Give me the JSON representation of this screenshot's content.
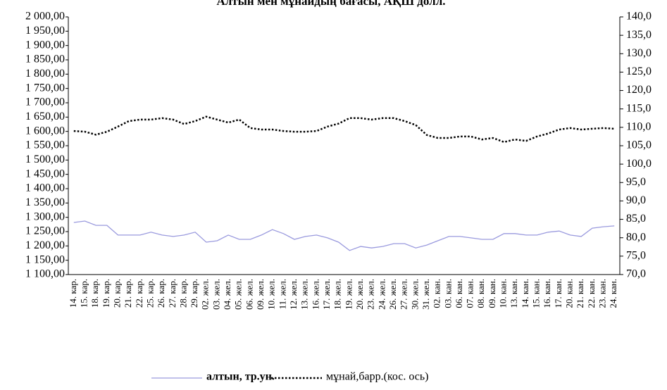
{
  "chart_data": {
    "type": "line",
    "title": "Алтын мен мұнайдың бағасы, АҚШ долл.",
    "categories": [
      "14. кар.",
      "15. кар.",
      "18. кар.",
      "19. кар.",
      "20. кар.",
      "21. кар.",
      "22. кар.",
      "25. кар.",
      "26. кар.",
      "27. кар.",
      "28. кар.",
      "29. кар.",
      "02. жел.",
      "03. жел.",
      "04. жел.",
      "05. жел.",
      "06. жел.",
      "09. жел.",
      "10. жел.",
      "11. жел.",
      "12. жел.",
      "13. жел.",
      "16. жел.",
      "17. жел.",
      "18. жел.",
      "19. жел.",
      "20. жел.",
      "23. жел.",
      "24. жел.",
      "26. жел.",
      "27. жел.",
      "30. жел.",
      "31. жел.",
      "02. кан.",
      "03. кан.",
      "06. кан.",
      "07. кан.",
      "08. кан.",
      "09. кан.",
      "10. кан.",
      "13. кан.",
      "14. кан.",
      "15. кан.",
      "16. кан.",
      "17. кан.",
      "20. кан.",
      "21. кан.",
      "22. кан.",
      "23. кан.",
      "24. кан."
    ],
    "series": [
      {
        "name": "алтын, тр.ун.",
        "color": "#9a9ade",
        "values": [
          1282,
          1287,
          1272,
          1272,
          1238,
          1238,
          1238,
          1248,
          1238,
          1233,
          1238,
          1248,
          1213,
          1218,
          1238,
          1223,
          1223,
          1238,
          1257,
          1243,
          1223,
          1233,
          1238,
          1228,
          1213,
          1184,
          1198,
          1193,
          1198,
          1208,
          1208,
          1193,
          1203,
          1218,
          1233,
          1233,
          1228,
          1223,
          1223,
          1243,
          1243,
          1238,
          1238,
          1248,
          1252,
          1238,
          1233,
          1262,
          1267,
          1270
        ]
      },
      {
        "name": "мұнай,барр.(кос. ось)",
        "color": "#000000",
        "axis": "y2",
        "values": [
          109,
          108.8,
          108,
          108.8,
          110.2,
          111.7,
          112.1,
          112.1,
          112.5,
          112.1,
          110.9,
          111.7,
          112.9,
          112.1,
          111.3,
          112.1,
          109.8,
          109.4,
          109.4,
          109,
          108.8,
          108.8,
          109,
          110.2,
          111,
          112.5,
          112.5,
          112.1,
          112.5,
          112.5,
          111.7,
          110.6,
          107.9,
          107.1,
          107.1,
          107.5,
          107.5,
          106.7,
          107.1,
          106,
          106.7,
          106.3,
          107.5,
          108.3,
          109.4,
          109.8,
          109.4,
          109.6,
          109.8,
          109.6
        ]
      }
    ],
    "ylim": [
      1100,
      2000
    ],
    "yticks": [
      {
        "value": 1100,
        "label": "1 100,00"
      },
      {
        "value": 1150,
        "label": "1 150,00"
      },
      {
        "value": 1200,
        "label": "1 200,00"
      },
      {
        "value": 1250,
        "label": "1 250,00"
      },
      {
        "value": 1300,
        "label": "1 300,00"
      },
      {
        "value": 1350,
        "label": "1 350,00"
      },
      {
        "value": 1400,
        "label": "1 400,00"
      },
      {
        "value": 1450,
        "label": "1 450,00"
      },
      {
        "value": 1500,
        "label": "1 500,00"
      },
      {
        "value": 1550,
        "label": "1 550,00"
      },
      {
        "value": 1600,
        "label": "1 600,00"
      },
      {
        "value": 1650,
        "label": "1 650,00"
      },
      {
        "value": 1700,
        "label": "1 700,00"
      },
      {
        "value": 1750,
        "label": "1 750,00"
      },
      {
        "value": 1800,
        "label": "1 800,00"
      },
      {
        "value": 1850,
        "label": "1 850,00"
      },
      {
        "value": 1900,
        "label": "1 900,00"
      },
      {
        "value": 1950,
        "label": "1 950,00"
      },
      {
        "value": 2000,
        "label": "2 000,00"
      }
    ],
    "y2lim": [
      70,
      140
    ],
    "y2ticks": [
      {
        "value": 70,
        "label": "70,0"
      },
      {
        "value": 75,
        "label": "75,0"
      },
      {
        "value": 80,
        "label": "80,0"
      },
      {
        "value": 85,
        "label": "85,0"
      },
      {
        "value": 90,
        "label": "90,0"
      },
      {
        "value": 95,
        "label": "95,0"
      },
      {
        "value": 100,
        "label": "100,0"
      },
      {
        "value": 105,
        "label": "105,0"
      },
      {
        "value": 110,
        "label": "110,0"
      },
      {
        "value": 115,
        "label": "115,0"
      },
      {
        "value": 120,
        "label": "120,0"
      },
      {
        "value": 125,
        "label": "125,0"
      },
      {
        "value": 130,
        "label": "130,0"
      },
      {
        "value": 135,
        "label": "135,0"
      },
      {
        "value": 140,
        "label": "140,0"
      }
    ],
    "legend": "bottom"
  }
}
